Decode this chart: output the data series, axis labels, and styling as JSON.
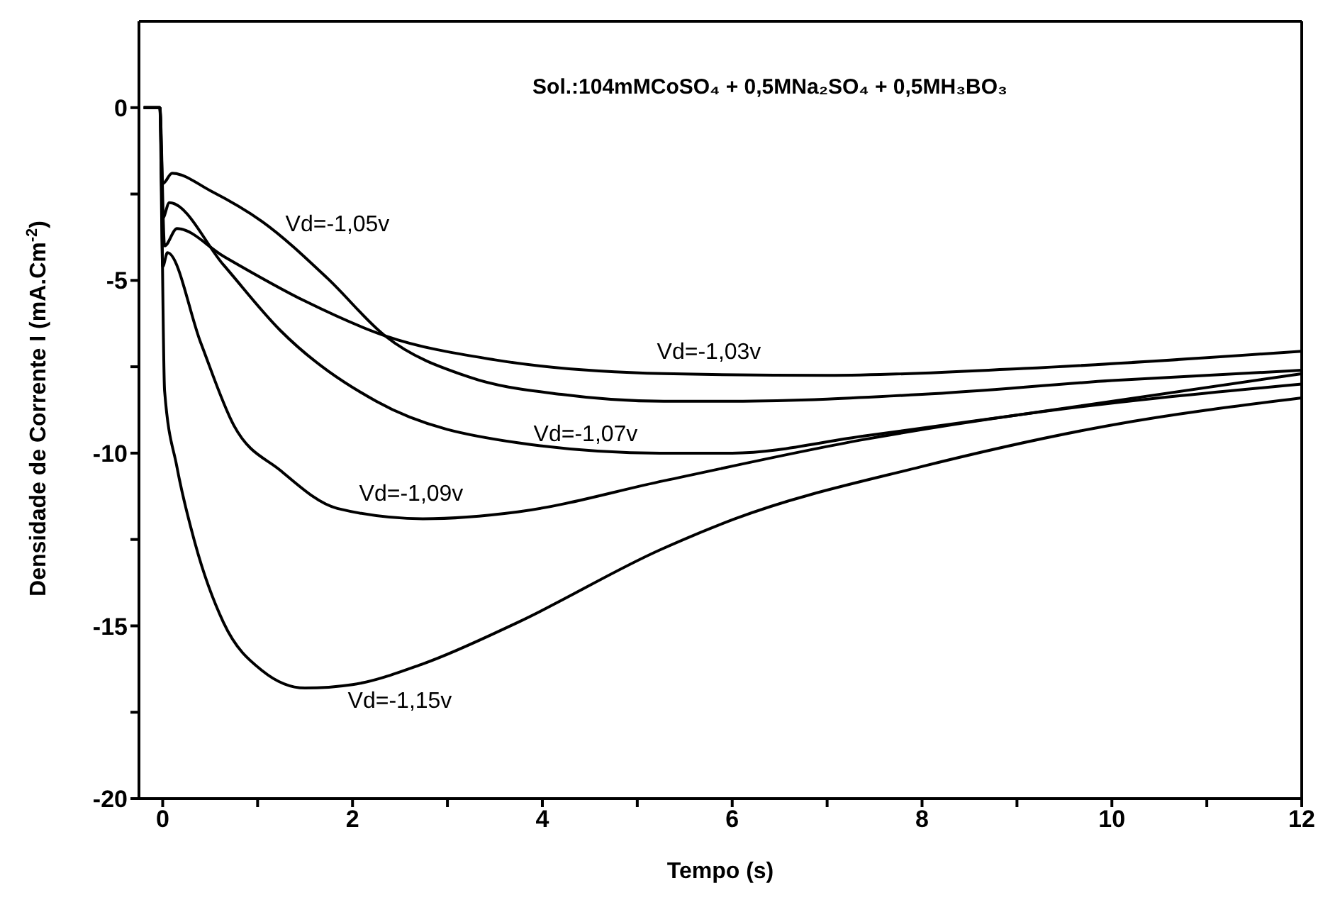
{
  "chart_data": {
    "type": "line",
    "title": "Sol.:104mMCoSO₄ + 0,5MNa₂SO₄ + 0,5MH₃BO₃",
    "xlabel": "Tempo (s)",
    "ylabel": "Densidade de Corrente I (mA.Cm$^{-2}$)",
    "xlim": [
      -0.25,
      12
    ],
    "xticks": [
      0,
      {
        "value": 1,
        "label": null
      },
      2,
      {
        "value": 3,
        "label": null
      },
      4,
      {
        "value": 5,
        "label": null
      },
      6,
      {
        "value": 7,
        "label": null
      },
      8,
      {
        "value": 9,
        "label": null
      },
      10,
      {
        "value": 11,
        "label": null
      },
      12
    ],
    "ylim": [
      -20,
      2.5
    ],
    "yticks": [
      -20,
      {
        "value": -17.5,
        "label": null
      },
      -15,
      {
        "value": -12.5,
        "label": null
      },
      -10,
      {
        "value": -7.5,
        "label": null
      },
      -5,
      {
        "value": -2.5,
        "label": null
      },
      0
    ],
    "legend": false,
    "marker": "none",
    "line_style": "solid",
    "series": [
      {
        "name": "Vd=-1,05v",
        "color": "#000000",
        "x": [
          -0.2,
          -0.03,
          0.0,
          0.1,
          0.5,
          1.05,
          1.74,
          2.34,
          3.23,
          4.2,
          5.28,
          6,
          8,
          10,
          12
        ],
        "values": [
          0,
          0,
          -2.2,
          -1.9,
          -2.4,
          -3.3,
          -4.95,
          -6.6,
          -7.8,
          -8.3,
          -8.5,
          -8.5,
          -8.3,
          -7.9,
          -7.6
        ]
      },
      {
        "name": "Vd=-1,03v",
        "color": "#000000",
        "x": [
          -0.2,
          -0.03,
          0.02,
          0.15,
          0.64,
          1.5,
          2.34,
          3.5,
          5.28,
          7,
          9.07,
          12
        ],
        "values": [
          0,
          0,
          -4,
          -3.5,
          -4.3,
          -5.6,
          -6.6,
          -7.3,
          -7.7,
          -7.75,
          -7.55,
          -7.05
        ]
      },
      {
        "name": "Vd=-1,07v",
        "color": "#000000",
        "x": [
          -0.2,
          -0.03,
          0.0,
          0.07,
          0.64,
          1.24,
          2.25,
          3.74,
          5.24,
          6,
          7.4,
          9,
          12
        ],
        "values": [
          0,
          0,
          -3.2,
          -2.75,
          -4.55,
          -6.45,
          -8.5,
          -9.7,
          -10.0,
          -10.0,
          -9.5,
          -8.9,
          -7.7
        ]
      },
      {
        "name": "Vd=-1,09v",
        "color": "#000000",
        "x": [
          -0.2,
          -0.03,
          0.0,
          0.05,
          0.4,
          0.75,
          1.24,
          1.84,
          2.74,
          3.74,
          5.28,
          7.4,
          9,
          12
        ],
        "values": [
          0,
          0,
          -4.6,
          -4.2,
          -6.8,
          -9.2,
          -10.5,
          -11.6,
          -11.9,
          -11.7,
          -10.8,
          -9.6,
          -8.9,
          -8.0
        ]
      },
      {
        "name": "Vd=-1,15v",
        "color": "#000000",
        "x": [
          -0.2,
          -0.03,
          0.02,
          0.15,
          0.34,
          0.64,
          1.05,
          1.5,
          2.0,
          2.74,
          3.74,
          5.24,
          6.03,
          7.98,
          9.97,
          12
        ],
        "values": [
          0,
          0,
          -8.2,
          -10.4,
          -12.6,
          -14.9,
          -16.3,
          -16.8,
          -16.7,
          -16.1,
          -14.9,
          -12.8,
          -11.9,
          -10.4,
          -9.2,
          -8.4
        ]
      }
    ]
  }
}
